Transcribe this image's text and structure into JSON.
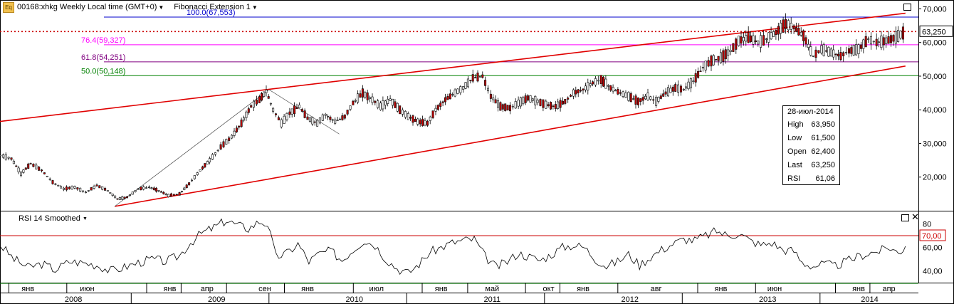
{
  "header": {
    "icon_label": "Eq",
    "title": "00168:xhkg Weekly Local time (GMT+0)",
    "study": "Fibonacci Extension 1"
  },
  "fib_levels": [
    {
      "label": "100.0(67,553)",
      "value": 67553,
      "color": "#0000cc"
    },
    {
      "label": "76.4(59,327)",
      "value": 59327,
      "color": "#ff00ff"
    },
    {
      "label": "61.8(54,251)",
      "value": 54251,
      "color": "#800080"
    },
    {
      "label": "50.0(50,148)",
      "value": 50148,
      "color": "#008000"
    }
  ],
  "last_price_label": "63,250",
  "price_axis_labels": [
    "70,000",
    "60,000",
    "50,000",
    "40,000",
    "30,000",
    "20,000"
  ],
  "rsi_panel": {
    "title": "RSI 14 Smoothed",
    "level_label": "70,00",
    "axis_labels": [
      "80",
      "60,00",
      "40,00"
    ]
  },
  "info_box": {
    "date": "28-июл-2014",
    "rows": [
      {
        "k": "High",
        "v": "63,950"
      },
      {
        "k": "Low",
        "v": "61,500"
      },
      {
        "k": "Open",
        "v": "62,400"
      },
      {
        "k": "Last",
        "v": "63,250"
      },
      {
        "k": "RSI",
        "v": "61,06"
      }
    ]
  },
  "time_axis": {
    "months": [
      {
        "label": "янв",
        "x": 0.2
      },
      {
        "label": "июн",
        "x": 0.63
      },
      {
        "label": "янв",
        "x": 1.23
      },
      {
        "label": "апр",
        "x": 1.5
      },
      {
        "label": "сен",
        "x": 1.92
      },
      {
        "label": "янв",
        "x": 2.23
      },
      {
        "label": "июл",
        "x": 2.73
      },
      {
        "label": "янв",
        "x": 3.2
      },
      {
        "label": "май",
        "x": 3.57
      },
      {
        "label": "окт",
        "x": 3.98
      },
      {
        "label": "янв",
        "x": 4.23
      },
      {
        "label": "авг",
        "x": 4.76
      },
      {
        "label": "янв",
        "x": 5.23
      },
      {
        "label": "июн",
        "x": 5.62
      },
      {
        "label": "янв",
        "x": 6.23
      },
      {
        "label": "апр",
        "x": 6.45
      }
    ],
    "years": [
      {
        "label": "2008",
        "x": 0.53
      },
      {
        "label": "2009",
        "x": 1.57
      },
      {
        "label": "2010",
        "x": 2.57
      },
      {
        "label": "2011",
        "x": 3.57
      },
      {
        "label": "2012",
        "x": 4.57
      },
      {
        "label": "2013",
        "x": 5.57
      },
      {
        "label": "2014",
        "x": 6.31
      }
    ]
  },
  "chart_data": {
    "type": "line",
    "ylim": [
      10000,
      72000
    ],
    "x_units": "years since 2008-01-01",
    "xlim": [
      0,
      6.9
    ],
    "price_series": [
      [
        0.0,
        26500
      ],
      [
        0.08,
        25500
      ],
      [
        0.15,
        21000
      ],
      [
        0.22,
        24000
      ],
      [
        0.3,
        22000
      ],
      [
        0.38,
        18500
      ],
      [
        0.46,
        16500
      ],
      [
        0.54,
        17000
      ],
      [
        0.62,
        15500
      ],
      [
        0.7,
        17500
      ],
      [
        0.78,
        16000
      ],
      [
        0.85,
        13500
      ],
      [
        0.92,
        14000
      ],
      [
        1.0,
        16500
      ],
      [
        1.08,
        17000
      ],
      [
        1.15,
        16000
      ],
      [
        1.22,
        14500
      ],
      [
        1.3,
        15000
      ],
      [
        1.37,
        18000
      ],
      [
        1.45,
        22000
      ],
      [
        1.52,
        25000
      ],
      [
        1.6,
        29000
      ],
      [
        1.68,
        32000
      ],
      [
        1.75,
        36000
      ],
      [
        1.82,
        41000
      ],
      [
        1.88,
        43000
      ],
      [
        1.93,
        45500
      ],
      [
        1.98,
        40000
      ],
      [
        2.04,
        36000
      ],
      [
        2.1,
        39000
      ],
      [
        2.17,
        41000
      ],
      [
        2.23,
        37500
      ],
      [
        2.3,
        36000
      ],
      [
        2.36,
        38500
      ],
      [
        2.43,
        36500
      ],
      [
        2.5,
        38000
      ],
      [
        2.56,
        42000
      ],
      [
        2.63,
        45000
      ],
      [
        2.7,
        43000
      ],
      [
        2.76,
        41000
      ],
      [
        2.83,
        43000
      ],
      [
        2.9,
        40000
      ],
      [
        2.96,
        38000
      ],
      [
        3.03,
        36500
      ],
      [
        3.1,
        36000
      ],
      [
        3.16,
        40000
      ],
      [
        3.23,
        43000
      ],
      [
        3.3,
        45000
      ],
      [
        3.36,
        46500
      ],
      [
        3.43,
        49500
      ],
      [
        3.5,
        50000
      ],
      [
        3.56,
        44000
      ],
      [
        3.63,
        41000
      ],
      [
        3.7,
        40500
      ],
      [
        3.76,
        42000
      ],
      [
        3.83,
        43500
      ],
      [
        3.9,
        42500
      ],
      [
        3.96,
        41500
      ],
      [
        4.03,
        41000
      ],
      [
        4.1,
        42500
      ],
      [
        4.16,
        45000
      ],
      [
        4.23,
        46000
      ],
      [
        4.3,
        48000
      ],
      [
        4.36,
        49000
      ],
      [
        4.43,
        46500
      ],
      [
        4.5,
        45000
      ],
      [
        4.56,
        44000
      ],
      [
        4.63,
        42500
      ],
      [
        4.7,
        44000
      ],
      [
        4.76,
        42500
      ],
      [
        4.83,
        45000
      ],
      [
        4.9,
        46500
      ],
      [
        4.96,
        46000
      ],
      [
        5.03,
        48500
      ],
      [
        5.1,
        52500
      ],
      [
        5.16,
        54500
      ],
      [
        5.23,
        55500
      ],
      [
        5.3,
        57500
      ],
      [
        5.36,
        60500
      ],
      [
        5.43,
        61500
      ],
      [
        5.5,
        60000
      ],
      [
        5.56,
        61000
      ],
      [
        5.63,
        63000
      ],
      [
        5.7,
        65500
      ],
      [
        5.76,
        64500
      ],
      [
        5.83,
        62000
      ],
      [
        5.9,
        56000
      ],
      [
        5.96,
        58000
      ],
      [
        6.03,
        57000
      ],
      [
        6.1,
        56000
      ],
      [
        6.16,
        57500
      ],
      [
        6.23,
        58000
      ],
      [
        6.3,
        61000
      ],
      [
        6.36,
        60000
      ],
      [
        6.43,
        60500
      ],
      [
        6.5,
        61500
      ],
      [
        6.57,
        63250
      ]
    ],
    "rsi_series": [
      [
        0.0,
        62
      ],
      [
        0.1,
        50
      ],
      [
        0.2,
        43
      ],
      [
        0.3,
        46
      ],
      [
        0.4,
        41
      ],
      [
        0.5,
        48
      ],
      [
        0.6,
        47
      ],
      [
        0.7,
        45
      ],
      [
        0.8,
        40
      ],
      [
        0.9,
        43
      ],
      [
        1.0,
        47
      ],
      [
        1.1,
        50
      ],
      [
        1.2,
        48
      ],
      [
        1.3,
        53
      ],
      [
        1.38,
        64
      ],
      [
        1.46,
        72
      ],
      [
        1.55,
        77
      ],
      [
        1.64,
        83
      ],
      [
        1.72,
        79
      ],
      [
        1.8,
        76
      ],
      [
        1.88,
        82
      ],
      [
        1.94,
        80
      ],
      [
        2.0,
        52
      ],
      [
        2.08,
        55
      ],
      [
        2.16,
        63
      ],
      [
        2.24,
        48
      ],
      [
        2.32,
        55
      ],
      [
        2.4,
        57
      ],
      [
        2.48,
        49
      ],
      [
        2.56,
        58
      ],
      [
        2.64,
        66
      ],
      [
        2.72,
        62
      ],
      [
        2.8,
        50
      ],
      [
        2.88,
        42
      ],
      [
        2.96,
        38
      ],
      [
        3.04,
        46
      ],
      [
        3.12,
        56
      ],
      [
        3.2,
        60
      ],
      [
        3.28,
        64
      ],
      [
        3.36,
        66
      ],
      [
        3.44,
        67
      ],
      [
        3.52,
        52
      ],
      [
        3.6,
        43
      ],
      [
        3.68,
        48
      ],
      [
        3.76,
        55
      ],
      [
        3.84,
        52
      ],
      [
        3.92,
        49
      ],
      [
        4.0,
        54
      ],
      [
        4.08,
        60
      ],
      [
        4.16,
        62
      ],
      [
        4.24,
        60
      ],
      [
        4.32,
        50
      ],
      [
        4.4,
        44
      ],
      [
        4.48,
        48
      ],
      [
        4.56,
        54
      ],
      [
        4.64,
        45
      ],
      [
        4.72,
        52
      ],
      [
        4.8,
        58
      ],
      [
        4.88,
        63
      ],
      [
        4.96,
        67
      ],
      [
        5.04,
        66
      ],
      [
        5.12,
        70
      ],
      [
        5.2,
        74
      ],
      [
        5.28,
        70
      ],
      [
        5.36,
        72
      ],
      [
        5.44,
        66
      ],
      [
        5.52,
        62
      ],
      [
        5.6,
        64
      ],
      [
        5.68,
        58
      ],
      [
        5.76,
        57
      ],
      [
        5.82,
        47
      ],
      [
        5.9,
        44
      ],
      [
        5.98,
        46
      ],
      [
        6.06,
        44
      ],
      [
        6.14,
        48
      ],
      [
        6.22,
        52
      ],
      [
        6.3,
        55
      ],
      [
        6.38,
        57
      ],
      [
        6.46,
        60
      ],
      [
        6.52,
        55
      ],
      [
        6.57,
        61
      ]
    ],
    "rsi_ylim": [
      30,
      90
    ],
    "rsi_levels": [
      70,
      30
    ],
    "channel_upper": [
      [
        -0.01,
        36500
      ],
      [
        6.57,
        68700
      ]
    ],
    "channel_lower": [
      [
        0.83,
        11300
      ],
      [
        6.57,
        53000
      ]
    ],
    "fib_swings": [
      [
        0.83,
        11300
      ],
      [
        1.95,
        46000
      ],
      [
        2.46,
        32800
      ]
    ],
    "last_price": 63250
  }
}
